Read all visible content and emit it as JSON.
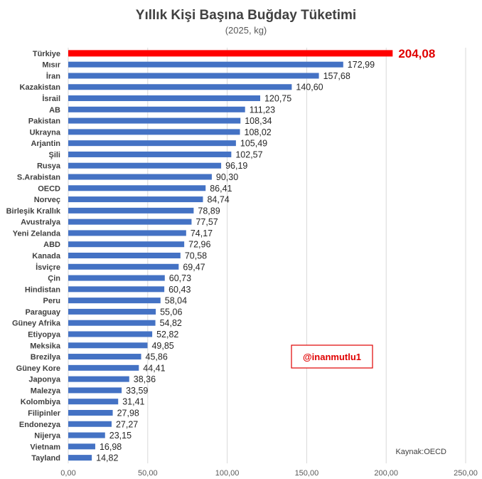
{
  "chart_data": {
    "type": "bar",
    "orientation": "horizontal",
    "title": "Yıllık Kişi Başına Buğday Tüketimi",
    "subtitle": "(2025, kg)",
    "categories": [
      "Türkiye",
      "Mısır",
      "İran",
      "Kazakistan",
      "İsrail",
      "AB",
      "Pakistan",
      "Ukrayna",
      "Arjantin",
      "Şili",
      "Rusya",
      "S.Arabistan",
      "OECD",
      "Norveç",
      "Birleşik Krallık",
      "Avustralya",
      "Yeni Zelanda",
      "ABD",
      "Kanada",
      "İsviçre",
      "Çin",
      "Hindistan",
      "Peru",
      "Paraguay",
      "Güney Afrika",
      "Etiyopya",
      "Meksika",
      "Brezilya",
      "Güney Kore",
      "Japonya",
      "Malezya",
      "Kolombiya",
      "Filipinler",
      "Endonezya",
      "Nijerya",
      "Vietnam",
      "Tayland"
    ],
    "values": [
      204.08,
      172.99,
      157.68,
      140.6,
      120.75,
      111.23,
      108.34,
      108.02,
      105.49,
      102.57,
      96.19,
      90.3,
      86.41,
      84.74,
      78.89,
      77.57,
      74.17,
      72.96,
      70.58,
      69.47,
      60.73,
      60.43,
      58.04,
      55.06,
      54.82,
      52.82,
      49.85,
      45.86,
      44.41,
      38.36,
      33.59,
      31.41,
      27.98,
      27.27,
      23.15,
      16.98,
      14.82
    ],
    "value_labels": [
      "204,08",
      "172,99",
      "157,68",
      "140,60",
      "120,75",
      "111,23",
      "108,34",
      "108,02",
      "105,49",
      "102,57",
      "96,19",
      "90,30",
      "86,41",
      "84,74",
      "78,89",
      "77,57",
      "74,17",
      "72,96",
      "70,58",
      "69,47",
      "60,73",
      "60,43",
      "58,04",
      "55,06",
      "54,82",
      "52,82",
      "49,85",
      "45,86",
      "44,41",
      "38,36",
      "33,59",
      "31,41",
      "27,98",
      "27,27",
      "23,15",
      "16,98",
      "14,82"
    ],
    "xlim": [
      0,
      250
    ],
    "x_ticks": [
      0,
      50,
      100,
      150,
      200,
      250
    ],
    "x_tick_labels": [
      "0,00",
      "50,00",
      "100,00",
      "150,00",
      "200,00",
      "250,00"
    ],
    "grid": true,
    "highlight_category": "Türkiye",
    "colors": {
      "bar": "#4472c4",
      "highlight": "#ff0000",
      "highlight_text": "#e00000"
    }
  },
  "annotations": {
    "badge": "@inanmutlu1",
    "source": "Kaynak:OECD"
  }
}
